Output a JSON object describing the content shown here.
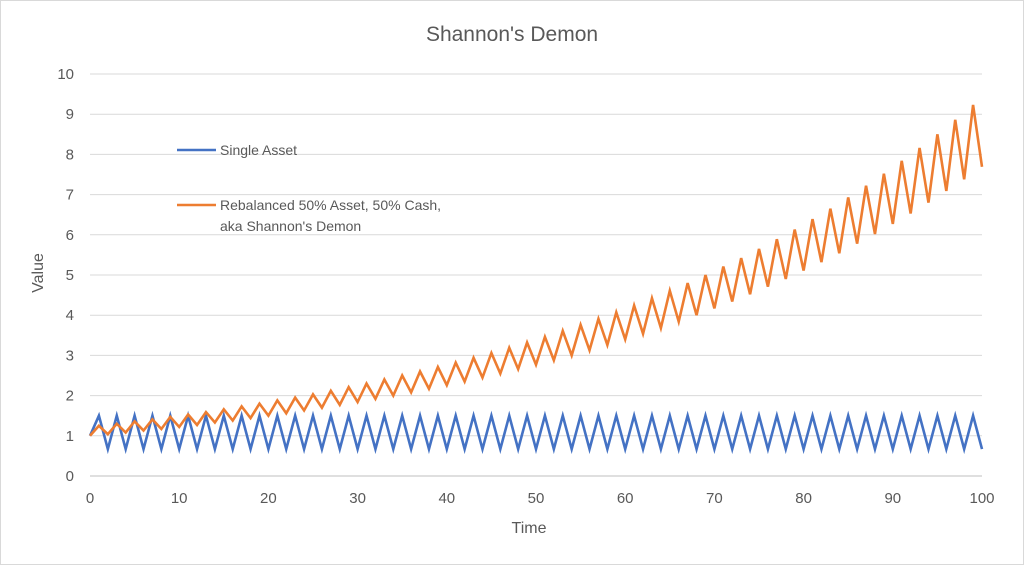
{
  "chart_data": {
    "type": "line",
    "title": "Shannon's Demon",
    "xlabel": "Time",
    "ylabel": "Value",
    "xlim": [
      0,
      100
    ],
    "ylim": [
      0,
      10
    ],
    "xticks": [
      "0",
      "10",
      "20",
      "30",
      "40",
      "50",
      "60",
      "70",
      "80",
      "90",
      "100"
    ],
    "yticks": [
      "0",
      "1",
      "2",
      "3",
      "4",
      "5",
      "6",
      "7",
      "8",
      "9",
      "10"
    ],
    "grid": "horizontal",
    "legend_position": "left-upper",
    "x": [
      0,
      1,
      2,
      3,
      4,
      5,
      6,
      7,
      8,
      9,
      10,
      11,
      12,
      13,
      14,
      15,
      16,
      17,
      18,
      19,
      20,
      21,
      22,
      23,
      24,
      25,
      26,
      27,
      28,
      29,
      30,
      31,
      32,
      33,
      34,
      35,
      36,
      37,
      38,
      39,
      40,
      41,
      42,
      43,
      44,
      45,
      46,
      47,
      48,
      49,
      50,
      51,
      52,
      53,
      54,
      55,
      56,
      57,
      58,
      59,
      60,
      61,
      62,
      63,
      64,
      65,
      66,
      67,
      68,
      69,
      70,
      71,
      72,
      73,
      74,
      75,
      76,
      77,
      78,
      79,
      80,
      81,
      82,
      83,
      84,
      85,
      86,
      87,
      88,
      89,
      90,
      91,
      92,
      93,
      94,
      95,
      96,
      97,
      98,
      99,
      100
    ],
    "series": [
      {
        "name": "Single Asset",
        "color": "#4472c4",
        "values": [
          1,
          1.5,
          0.67,
          1.5,
          0.67,
          1.5,
          0.67,
          1.5,
          0.67,
          1.5,
          0.67,
          1.5,
          0.67,
          1.5,
          0.67,
          1.5,
          0.67,
          1.5,
          0.67,
          1.5,
          0.67,
          1.5,
          0.67,
          1.5,
          0.67,
          1.5,
          0.67,
          1.5,
          0.67,
          1.5,
          0.67,
          1.5,
          0.67,
          1.5,
          0.67,
          1.5,
          0.67,
          1.5,
          0.67,
          1.5,
          0.67,
          1.5,
          0.67,
          1.5,
          0.67,
          1.5,
          0.67,
          1.5,
          0.67,
          1.5,
          0.67,
          1.5,
          0.67,
          1.5,
          0.67,
          1.5,
          0.67,
          1.5,
          0.67,
          1.5,
          0.67,
          1.5,
          0.67,
          1.5,
          0.67,
          1.5,
          0.67,
          1.5,
          0.67,
          1.5,
          0.67,
          1.5,
          0.67,
          1.5,
          0.67,
          1.5,
          0.67,
          1.5,
          0.67,
          1.5,
          0.67,
          1.5,
          0.67,
          1.5,
          0.67,
          1.5,
          0.67,
          1.5,
          0.67,
          1.5,
          0.67,
          1.5,
          0.67,
          1.5,
          0.67,
          1.5,
          0.67,
          1.5,
          0.67,
          1.5,
          0.67
        ]
      },
      {
        "name": "Rebalanced 50% Asset, 50% Cash,\naka Shannon's Demon",
        "color": "#ed7d31",
        "values": [
          1,
          1.25,
          1.04,
          1.3,
          1.08,
          1.36,
          1.13,
          1.41,
          1.17,
          1.47,
          1.22,
          1.53,
          1.27,
          1.59,
          1.33,
          1.66,
          1.38,
          1.73,
          1.44,
          1.8,
          1.5,
          1.88,
          1.56,
          1.95,
          1.63,
          2.03,
          1.7,
          2.12,
          1.77,
          2.21,
          1.84,
          2.3,
          1.92,
          2.4,
          2.0,
          2.5,
          2.08,
          2.6,
          2.17,
          2.71,
          2.26,
          2.82,
          2.35,
          2.94,
          2.45,
          3.06,
          2.55,
          3.19,
          2.66,
          3.32,
          2.77,
          3.46,
          2.88,
          3.61,
          3.0,
          3.76,
          3.13,
          3.91,
          3.26,
          4.07,
          3.4,
          4.24,
          3.54,
          4.42,
          3.68,
          4.61,
          3.84,
          4.8,
          4.0,
          5.0,
          4.17,
          5.21,
          4.34,
          5.42,
          4.52,
          5.65,
          4.71,
          5.89,
          4.9,
          6.13,
          5.11,
          6.39,
          5.32,
          6.65,
          5.54,
          6.93,
          5.78,
          7.22,
          6.02,
          7.52,
          6.27,
          7.84,
          6.53,
          8.16,
          6.8,
          8.5,
          7.09,
          8.86,
          7.38,
          9.23,
          7.69
        ]
      }
    ]
  }
}
